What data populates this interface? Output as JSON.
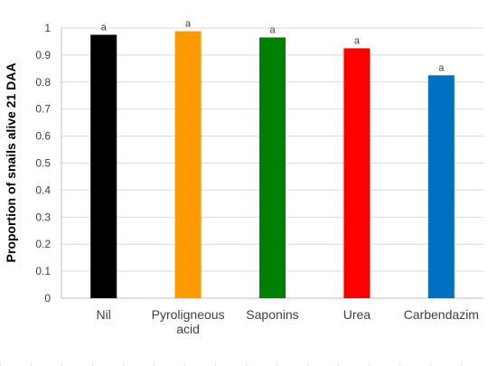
{
  "chart_data": {
    "type": "bar",
    "title": "",
    "xlabel": "",
    "ylabel": "Proportion of snails alive 21 DAA",
    "ylim": [
      0,
      1
    ],
    "yticks": [
      "0",
      "0.1",
      "0.2",
      "0.3",
      "0.4",
      "0.5",
      "0.6",
      "0.7",
      "0.8",
      "0.9",
      "1"
    ],
    "grid": true,
    "legend": "none",
    "categories": [
      {
        "lines": [
          "Nil"
        ]
      },
      {
        "lines": [
          "Pyroligneous",
          "acid"
        ]
      },
      {
        "lines": [
          "Saponins"
        ]
      },
      {
        "lines": [
          "Urea"
        ]
      },
      {
        "lines": [
          "Carbendazim"
        ]
      }
    ],
    "values": [
      0.975,
      0.988,
      0.965,
      0.925,
      0.825
    ],
    "colors": [
      "#000000",
      "#FF9900",
      "#008000",
      "#FF0000",
      "#0070C0"
    ],
    "significance_labels": [
      "a",
      "a",
      "a",
      "a",
      "a"
    ]
  }
}
